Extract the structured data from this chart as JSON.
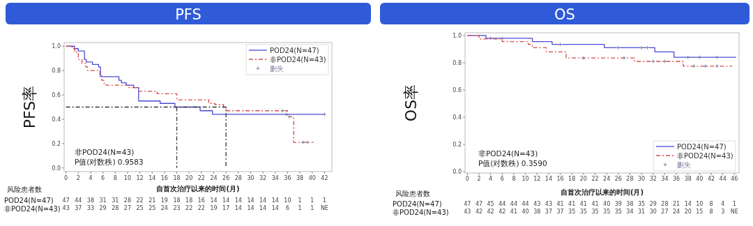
{
  "chart_data": [
    {
      "type": "step",
      "title": "PFS",
      "ylabel": "PFS率",
      "xlabel": "自首次治疗以来的时间(月)",
      "xlim": [
        -0.3,
        43.2
      ],
      "ylim": [
        -0.03,
        1.03
      ],
      "xticks": [
        0,
        2,
        4,
        6,
        8,
        10,
        12,
        14,
        16,
        18,
        20,
        22,
        24,
        26,
        28,
        30,
        32,
        34,
        36,
        38,
        40,
        42
      ],
      "yticks": [
        {
          "value": 0,
          "label": "0.0"
        },
        {
          "value": 0.2,
          "label": "0.2"
        },
        {
          "value": 0.4,
          "label": "0.4"
        },
        {
          "value": 0.6,
          "label": "0.6"
        },
        {
          "value": 0.8,
          "label": "0.8"
        },
        {
          "value": 1,
          "label": "1.0"
        }
      ],
      "legend": "top right",
      "grid": false,
      "series": [
        {
          "name": "POD24(N=47)",
          "color": "#4a4ad6",
          "line_style": "solid",
          "x": [
            0,
            1.4,
            2.0,
            3.0,
            3.3,
            4.3,
            5.3,
            5.6,
            8.6,
            9.0,
            9.8,
            11.0,
            11.8,
            15.3,
            17.7,
            21.8,
            23.8,
            42
          ],
          "values": [
            1.0,
            0.98,
            0.96,
            0.89,
            0.87,
            0.85,
            0.83,
            0.75,
            0.72,
            0.7,
            0.68,
            0.66,
            0.55,
            0.53,
            0.5,
            0.47,
            0.44,
            0.44
          ]
        },
        {
          "name": "非POD24(N=43)",
          "color": "#d84a4a",
          "line_style": "dashed",
          "x": [
            0,
            1.0,
            1.4,
            2.0,
            2.6,
            3.2,
            3.5,
            5.5,
            5.8,
            6.2,
            10.2,
            11.8,
            14.8,
            18.0,
            23.2,
            24.2,
            25.6,
            26.0,
            36.0,
            37.0,
            40.2
          ],
          "values": [
            1.0,
            0.98,
            0.95,
            0.89,
            0.86,
            0.83,
            0.8,
            0.76,
            0.72,
            0.68,
            0.66,
            0.63,
            0.61,
            0.56,
            0.53,
            0.52,
            0.5,
            0.47,
            0.42,
            0.21,
            0.21
          ]
        },
        {
          "name": "删失",
          "color": "#8080a0",
          "type": "scatter",
          "marker": "cross",
          "x": [
            35.2,
            35.8,
            36.3,
            38.5,
            39.2,
            42
          ],
          "values": [
            0.47,
            0.44,
            0.42,
            0.21,
            0.21,
            0.44
          ]
        },
        {
          "color": "#333333",
          "type": "line",
          "line_style": "dashed",
          "x": [
            0,
            26,
            26
          ],
          "values": [
            0.5,
            0.5,
            0
          ]
        },
        {
          "color": "#333333",
          "type": "line",
          "line_style": "dashed",
          "x": [
            18,
            18
          ],
          "values": [
            0.5,
            0
          ]
        }
      ],
      "annotations": [
        "非POD24(N=43)",
        "P值(对数秩)  0.9583",
        "风险患者数",
        "POD24(N=47)",
        "非POD24(N=43)",
        "47 44 38 31 31 28 22 21 19 18 18 16 14 14 14 14 14 14 10 1 1 1",
        "43 37 33 29 28 27 25 25 24 23 22 22 19 17 14 14 14 14 6 1 1 NE"
      ]
    },
    {
      "type": "step",
      "title": "OS",
      "ylabel": "OS率",
      "xlabel": "自首次治疗以来的时间(月)",
      "xlim": [
        -0.4,
        46.8
      ],
      "ylim": [
        -0.01,
        1.02
      ],
      "xticks": [
        0,
        2,
        4,
        6,
        8,
        10,
        12,
        14,
        16,
        18,
        20,
        22,
        24,
        26,
        28,
        30,
        32,
        34,
        36,
        38,
        40,
        42,
        44,
        46
      ],
      "yticks": [
        {
          "value": 0,
          "label": "0.0"
        },
        {
          "value": 0.2,
          "label": "0.2"
        },
        {
          "value": 0.4,
          "label": "0.4"
        },
        {
          "value": 0.6,
          "label": "0.6"
        },
        {
          "value": 0.8,
          "label": "0.8"
        },
        {
          "value": 1,
          "label": "1.0"
        }
      ],
      "legend": "bottom right",
      "grid": false,
      "series": [
        {
          "name": "POD24(N=47)",
          "color": "#4a4ad6",
          "line_style": "solid",
          "x": [
            0,
            3.2,
            11.2,
            14.6,
            23.6,
            32.3,
            35.6,
            46.3
          ],
          "values": [
            1.0,
            0.98,
            0.955,
            0.935,
            0.91,
            0.88,
            0.84,
            0.84
          ]
        },
        {
          "name": "非POD24(N=43)",
          "color": "#d84a4a",
          "line_style": "dashed",
          "x": [
            0,
            2.0,
            6.0,
            10.5,
            11.2,
            13.6,
            17.0,
            28.8,
            37.2,
            45.6
          ],
          "values": [
            1.0,
            0.975,
            0.955,
            0.935,
            0.91,
            0.88,
            0.835,
            0.81,
            0.775,
            0.775
          ]
        },
        {
          "name": "删失",
          "color": "#8080a0",
          "type": "scatter",
          "marker": "cross",
          "x": [
            4,
            6,
            16,
            26,
            30,
            31,
            38,
            40,
            43,
            20,
            27,
            32,
            34,
            39,
            41,
            43
          ],
          "values": [
            0.98,
            0.98,
            0.935,
            0.91,
            0.91,
            0.91,
            0.84,
            0.84,
            0.84,
            0.835,
            0.835,
            0.81,
            0.81,
            0.775,
            0.775,
            0.775
          ]
        }
      ],
      "annotations": [
        "非POD24(N=43)",
        "P值(对数秩)  0.3590",
        "风险患者数",
        "POD24(N=47)",
        "非POD24(N=43)",
        "47 47 45 44 44 44 43 43 41 41 41 41 40 39 38 35 29 28 21 14 10 8 4 1",
        "43 42 42 42 41 40 38 37 37 35 35 35 35 35 34 31 30 27 24 20 15 8 3 NE"
      ]
    }
  ]
}
